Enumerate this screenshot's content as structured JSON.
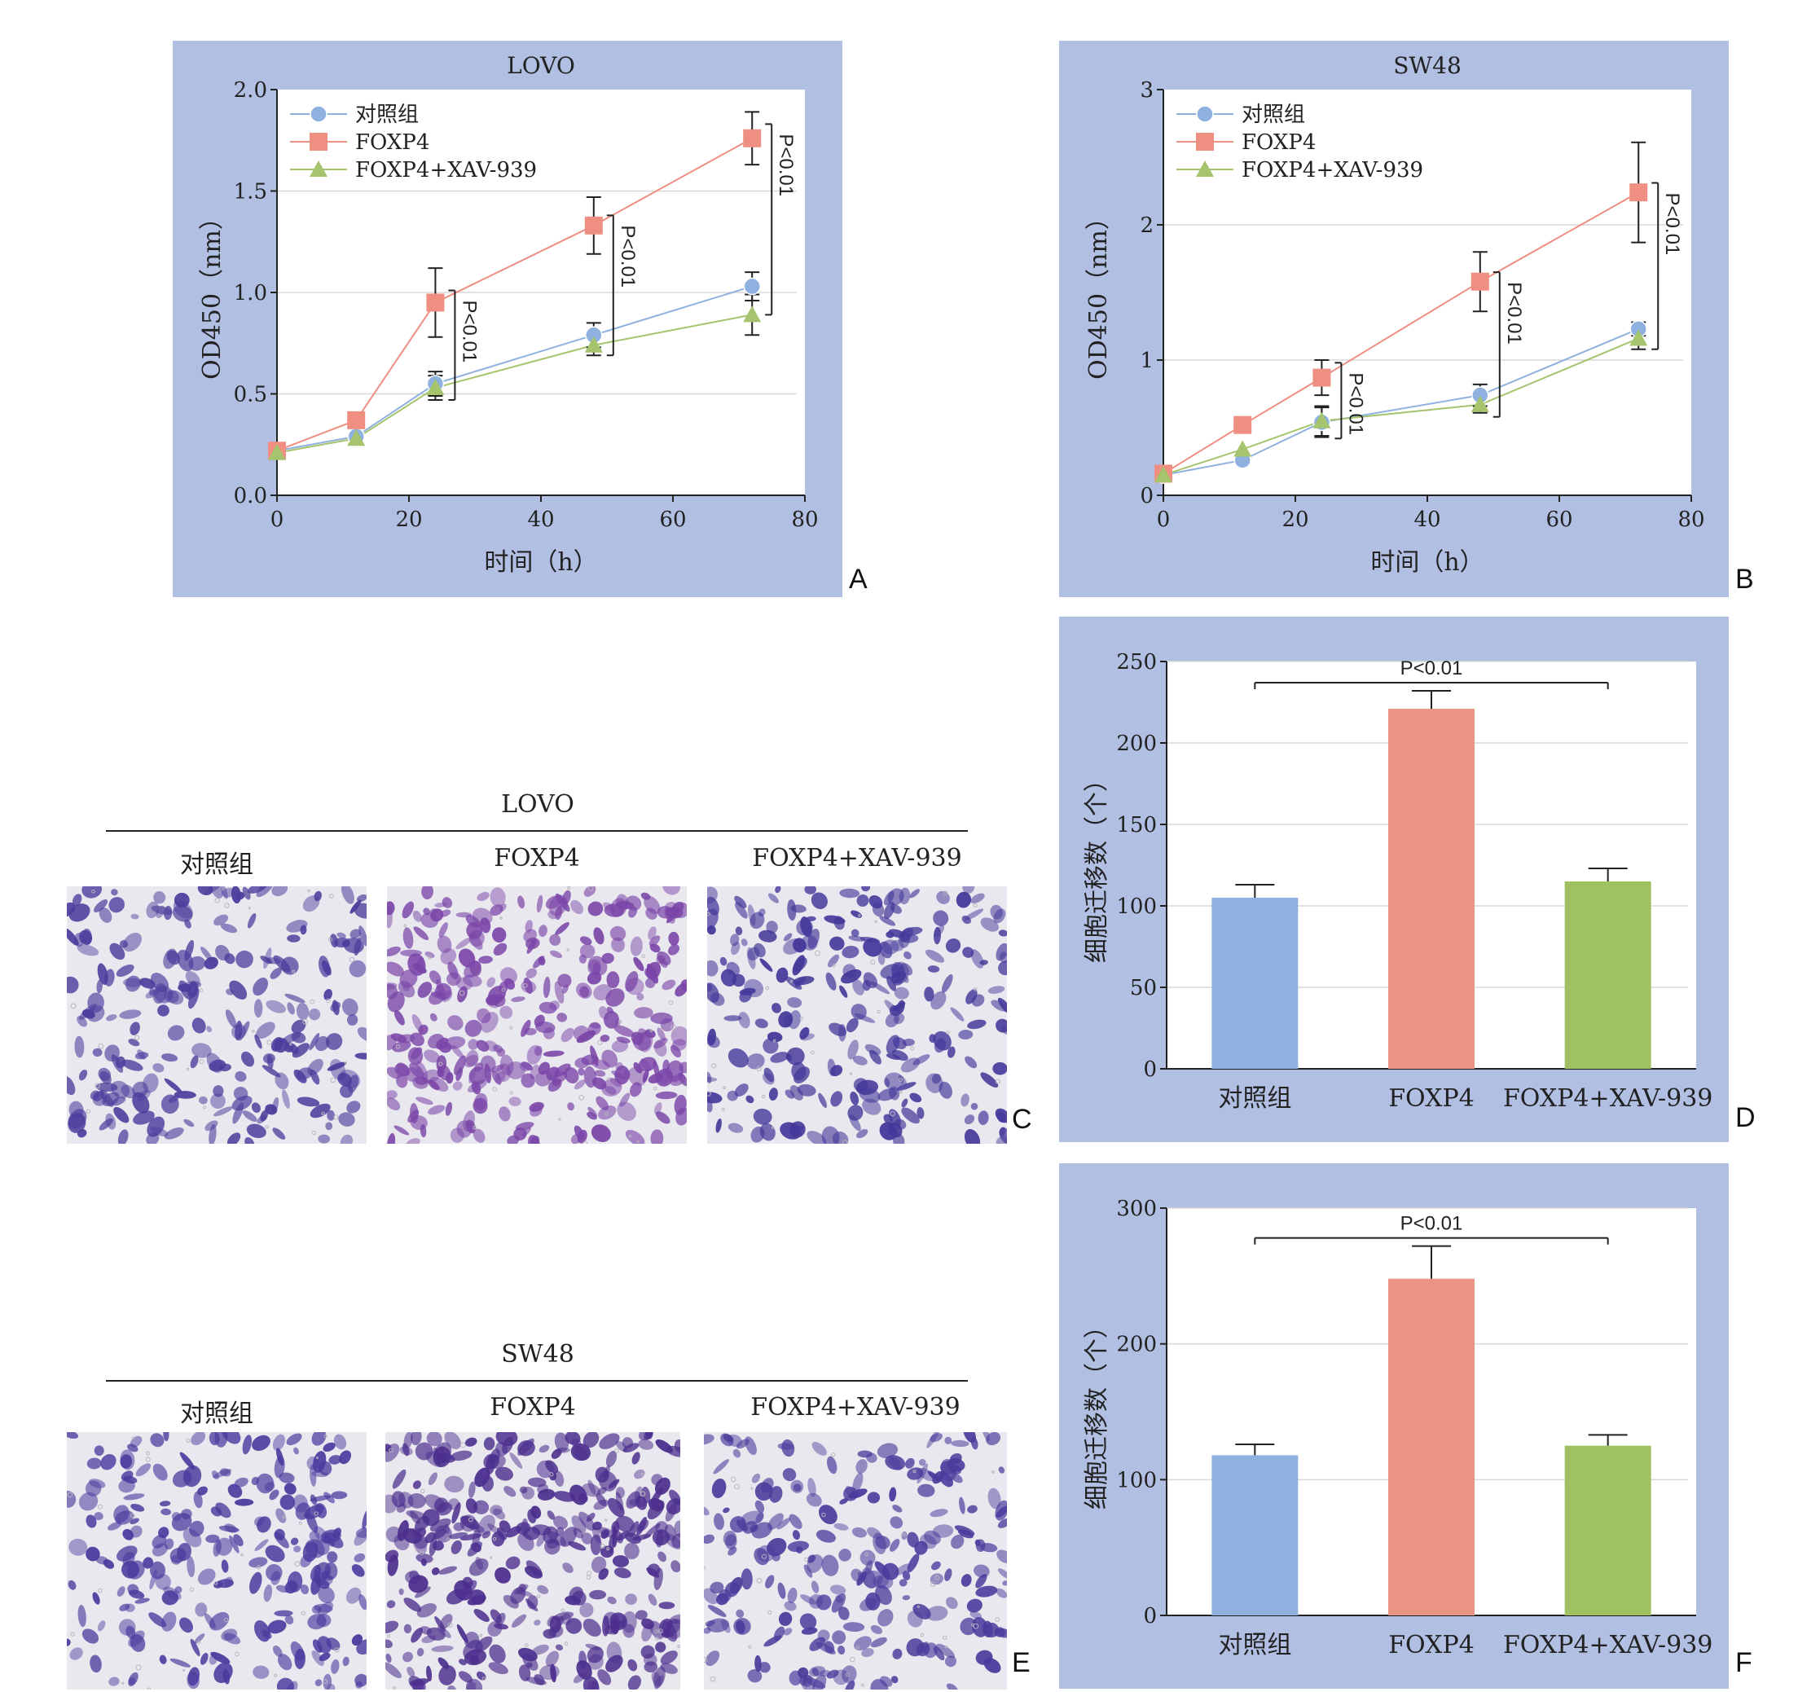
{
  "chart_data": [
    {
      "id": "A",
      "type": "line",
      "title": "LOVO",
      "xlabel": "时间（h）",
      "ylabel": "OD450（nm）",
      "xlim": [
        0,
        80
      ],
      "ylim": [
        0,
        2.0
      ],
      "xticks": [
        0,
        20,
        40,
        60,
        80
      ],
      "yticks": [
        0.0,
        0.5,
        1.0,
        1.5,
        2.0
      ],
      "ytick_labels": [
        "0.0",
        "0.5",
        "1.0",
        "1.5",
        "2.0"
      ],
      "grid": true,
      "legend_position": "top-left",
      "x": [
        0,
        12,
        24,
        48,
        72
      ],
      "series": [
        {
          "name": "对照组",
          "marker": "circle",
          "color": "#8fb1e0",
          "line_color": "#8fb1e0",
          "values": [
            0.22,
            0.29,
            0.55,
            0.79,
            1.03
          ],
          "errors": [
            0,
            0,
            0.06,
            0.06,
            0.07
          ]
        },
        {
          "name": "FOXP4",
          "marker": "square",
          "color": "#ef8f82",
          "line_color": "#ef8f82",
          "values": [
            0.22,
            0.37,
            0.95,
            1.33,
            1.76
          ],
          "errors": [
            0,
            0,
            0.17,
            0.14,
            0.13
          ]
        },
        {
          "name": "FOXP4+XAV-939",
          "marker": "triangle",
          "color": "#a5c46d",
          "line_color": "#a5c46d",
          "values": [
            0.21,
            0.28,
            0.53,
            0.74,
            0.89
          ],
          "errors": [
            0,
            0,
            0.06,
            0.05,
            0.1
          ]
        }
      ],
      "annotations": [
        {
          "text": "P<0.01",
          "x": 24,
          "y_low": 0.47,
          "y_high": 1.01
        },
        {
          "text": "P<0.01",
          "x": 48,
          "y_low": 0.69,
          "y_high": 1.38
        },
        {
          "text": "P<0.01",
          "x": 72,
          "y_low": 0.89,
          "y_high": 1.83
        }
      ],
      "letter": "A"
    },
    {
      "id": "B",
      "type": "line",
      "title": "SW48",
      "xlabel": "时间（h）",
      "ylabel": "OD450（nm）",
      "xlim": [
        0,
        80
      ],
      "ylim": [
        0,
        3
      ],
      "xticks": [
        0,
        20,
        40,
        60,
        80
      ],
      "yticks": [
        0,
        1,
        2,
        3
      ],
      "ytick_labels": [
        "0",
        "1",
        "2",
        "3"
      ],
      "grid": true,
      "legend_position": "top-left",
      "x": [
        0,
        12,
        24,
        48,
        72
      ],
      "series": [
        {
          "name": "对照组",
          "marker": "circle",
          "color": "#8fb1e0",
          "line_color": "#8fb1e0",
          "values": [
            0.15,
            0.26,
            0.54,
            0.74,
            1.23
          ],
          "errors": [
            0,
            0,
            0.11,
            0.08,
            0.05
          ]
        },
        {
          "name": "FOXP4",
          "marker": "square",
          "color": "#ef8f82",
          "line_color": "#ef8f82",
          "values": [
            0.16,
            0.52,
            0.87,
            1.58,
            2.24
          ],
          "errors": [
            0,
            0,
            0.13,
            0.22,
            0.37
          ]
        },
        {
          "name": "FOXP4+XAV-939",
          "marker": "triangle",
          "color": "#a5c46d",
          "line_color": "#a5c46d",
          "values": [
            0.15,
            0.34,
            0.55,
            0.67,
            1.16
          ],
          "errors": [
            0,
            0,
            0.11,
            0.06,
            0.08
          ]
        }
      ],
      "annotations": [
        {
          "text": "P<0.01",
          "x": 24,
          "y_low": 0.42,
          "y_high": 0.98
        },
        {
          "text": "P<0.01",
          "x": 48,
          "y_low": 0.58,
          "y_high": 1.65
        },
        {
          "text": "P<0.01",
          "x": 72,
          "y_low": 1.08,
          "y_high": 2.31
        }
      ],
      "letter": "B"
    },
    {
      "id": "D",
      "type": "bar",
      "ylabel": "细胞迁移数（个）",
      "categories": [
        "对照组",
        "FOXP4",
        "FOXP4+XAV-939"
      ],
      "values": [
        105,
        221,
        115
      ],
      "errors": [
        8,
        11,
        8
      ],
      "colors": [
        "#8fb1e0",
        "#ea9583",
        "#9fc162"
      ],
      "ylim": [
        0,
        250
      ],
      "yticks": [
        0,
        50,
        100,
        150,
        200,
        250
      ],
      "grid": true,
      "annotations": [
        {
          "text": "P<0.01",
          "from": 0,
          "to": 2,
          "y": 237
        }
      ],
      "letter": "D"
    },
    {
      "id": "F",
      "type": "bar",
      "ylabel": "细胞迁移数（个）",
      "categories": [
        "对照组",
        "FOXP4",
        "FOXP4+XAV-939"
      ],
      "values": [
        118,
        248,
        125
      ],
      "errors": [
        8,
        24,
        8
      ],
      "colors": [
        "#8fb1e0",
        "#ea9583",
        "#9fc162"
      ],
      "ylim": [
        0,
        300
      ],
      "yticks": [
        0,
        100,
        200,
        300
      ],
      "grid": true,
      "annotations": [
        {
          "text": "P<0.01",
          "from": 0,
          "to": 2,
          "y": 278
        }
      ],
      "letter": "F"
    }
  ],
  "micrographs": {
    "C": {
      "letter": "C",
      "cell_line": "LOVO",
      "labels": [
        "对照组",
        "FOXP4",
        "FOXP4+XAV-939"
      ],
      "cell_colors": [
        "#4c3c9c",
        "#7a45a8",
        "#44389a"
      ],
      "densities": [
        0.45,
        0.85,
        0.5
      ]
    },
    "E": {
      "letter": "E",
      "cell_line": "SW48",
      "labels": [
        "对照组",
        "FOXP4",
        "FOXP4+XAV-939"
      ],
      "cell_colors": [
        "#4a3a9e",
        "#4c2f8e",
        "#4a3c9c"
      ],
      "densities": [
        0.45,
        0.9,
        0.45
      ]
    }
  }
}
